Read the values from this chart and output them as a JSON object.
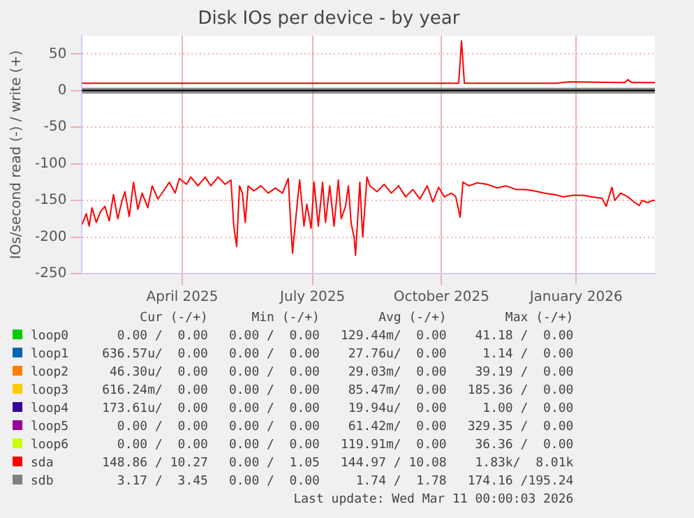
{
  "chart_data": {
    "type": "line",
    "title": "Disk IOs per device - by year",
    "ylabel": "IOs/second read (-) / write (+)",
    "xlim": [
      "2025-02-04",
      "2026-03-11"
    ],
    "xticks": [
      {
        "value": "2025-04-15",
        "label": "April 2025"
      },
      {
        "value": "2025-07-15",
        "label": "July 2025"
      },
      {
        "value": "2025-10-13",
        "label": "October 2025"
      },
      {
        "value": "2026-01-15",
        "label": "January 2026"
      }
    ],
    "ylim": [
      -250,
      75
    ],
    "yticks": [
      -250,
      -200,
      -150,
      -100,
      -50,
      0,
      50
    ],
    "grid": true,
    "legend": "bottom",
    "ref_lines": [
      {
        "axis": "y",
        "value": 0,
        "color": "#000000"
      }
    ],
    "series": [
      {
        "name": "loop0",
        "color": "#00cc00"
      },
      {
        "name": "loop1",
        "color": "#0066b3"
      },
      {
        "name": "loop2",
        "color": "#ff8000"
      },
      {
        "name": "loop3",
        "color": "#ffcc00"
      },
      {
        "name": "loop4",
        "color": "#330099"
      },
      {
        "name": "loop5",
        "color": "#990099"
      },
      {
        "name": "loop6",
        "color": "#ccff00"
      },
      {
        "name": "sda",
        "color": "#ff0000",
        "x": [
          "2025-02-04",
          "2025-10-25",
          "2025-10-27",
          "2025-10-29",
          "2026-01-01",
          "2026-01-10",
          "2026-02-18",
          "2026-02-20",
          "2026-02-23",
          "2026-03-11"
        ],
        "values": [
          10,
          10,
          68,
          10,
          10,
          12,
          11,
          15,
          11,
          11
        ]
      },
      {
        "color": "#ff0000",
        "x": [
          "2025-02-04",
          "2025-02-07",
          "2025-02-09",
          "2025-02-11",
          "2025-02-14",
          "2025-02-17",
          "2025-02-20",
          "2025-02-23",
          "2025-02-26",
          "2025-03-01",
          "2025-03-04",
          "2025-03-06",
          "2025-03-09",
          "2025-03-12",
          "2025-03-15",
          "2025-03-18",
          "2025-03-22",
          "2025-03-25",
          "2025-03-29",
          "2025-04-02",
          "2025-04-06",
          "2025-04-10",
          "2025-04-13",
          "2025-04-18",
          "2025-04-21",
          "2025-04-26",
          "2025-05-01",
          "2025-05-05",
          "2025-05-10",
          "2025-05-15",
          "2025-05-19",
          "2025-05-21",
          "2025-05-23",
          "2025-05-25",
          "2025-05-27",
          "2025-05-29",
          "2025-05-31",
          "2025-06-04",
          "2025-06-09",
          "2025-06-14",
          "2025-06-19",
          "2025-06-24",
          "2025-06-28",
          "2025-06-30",
          "2025-07-01",
          "2025-07-04",
          "2025-07-06",
          "2025-07-09",
          "2025-07-11",
          "2025-07-14",
          "2025-07-16",
          "2025-07-19",
          "2025-07-22",
          "2025-07-24",
          "2025-07-27",
          "2025-07-30",
          "2025-08-02",
          "2025-08-04",
          "2025-08-07",
          "2025-08-09",
          "2025-08-11",
          "2025-08-13",
          "2025-08-14",
          "2025-08-17",
          "2025-08-19",
          "2025-08-22",
          "2025-08-24",
          "2025-08-29",
          "2025-09-03",
          "2025-09-08",
          "2025-09-13",
          "2025-09-18",
          "2025-09-23",
          "2025-09-28",
          "2025-10-03",
          "2025-10-07",
          "2025-10-11",
          "2025-10-15",
          "2025-10-20",
          "2025-10-23",
          "2025-10-26",
          "2025-10-28",
          "2025-11-01",
          "2025-11-07",
          "2025-11-14",
          "2025-11-21",
          "2025-11-27",
          "2025-12-04",
          "2025-12-11",
          "2025-12-17",
          "2025-12-24",
          "2025-12-31",
          "2026-01-06",
          "2026-01-13",
          "2026-01-20",
          "2026-01-26",
          "2026-02-02",
          "2026-02-05",
          "2026-02-09",
          "2026-02-11",
          "2026-02-15",
          "2026-02-20",
          "2026-02-25",
          "2026-02-28",
          "2026-03-02",
          "2026-03-06",
          "2026-03-09",
          "2026-03-11"
        ],
        "values": [
          -183,
          -168,
          -185,
          -160,
          -180,
          -165,
          -158,
          -178,
          -142,
          -175,
          -150,
          -138,
          -172,
          -125,
          -162,
          -140,
          -160,
          -130,
          -148,
          -137,
          -125,
          -140,
          -120,
          -128,
          -118,
          -130,
          -118,
          -130,
          -118,
          -128,
          -122,
          -185,
          -213,
          -130,
          -140,
          -180,
          -130,
          -137,
          -130,
          -140,
          -133,
          -140,
          -120,
          -190,
          -222,
          -160,
          -122,
          -185,
          -155,
          -188,
          -125,
          -185,
          -125,
          -180,
          -130,
          -185,
          -122,
          -175,
          -158,
          -130,
          -182,
          -200,
          -225,
          -125,
          -200,
          -118,
          -130,
          -138,
          -128,
          -140,
          -130,
          -145,
          -135,
          -148,
          -130,
          -152,
          -132,
          -145,
          -140,
          -145,
          -173,
          -125,
          -130,
          -126,
          -128,
          -133,
          -130,
          -135,
          -135,
          -137,
          -140,
          -142,
          -145,
          -143,
          -143,
          -145,
          -147,
          -158,
          -132,
          -150,
          -140,
          -145,
          -153,
          -157,
          -150,
          -153,
          -150,
          -150
        ]
      },
      {
        "name": "sdb",
        "color": "#808080",
        "x": [
          "2025-02-04",
          "2026-03-11"
        ],
        "values": [
          3,
          3
        ]
      },
      {
        "color": "#808080",
        "x": [
          "2025-02-04",
          "2026-03-11"
        ],
        "values": [
          -3,
          -3
        ]
      }
    ],
    "annotations": [
      "Cur (-/+)",
      "Min (-/+)",
      "Avg (-/+)",
      "Max (-/+)",
      "0.00 /  0.00",
      "0.00 /  0.00",
      "129.44m/  0.00",
      "41.18 /  0.00",
      "636.57u/  0.00",
      "0.00 /  0.00",
      "27.76u/  0.00",
      "1.14 /  0.00",
      "46.30u/  0.00",
      "0.00 /  0.00",
      "29.03m/  0.00",
      "39.19 /  0.00",
      "616.24m/  0.00",
      "0.00 /  0.00",
      "85.47m/  0.00",
      "185.36 /  0.00",
      "173.61u/  0.00",
      "0.00 /  0.00",
      "19.94u/  0.00",
      "1.00 /  0.00",
      "0.00 /  0.00",
      "0.00 /  0.00",
      "61.42m/  0.00",
      "329.35 /  0.00",
      "0.00 /  0.00",
      "0.00 /  0.00",
      "119.91m/  0.00",
      "36.36 /  0.00",
      "148.86 / 10.27",
      "0.00 /  1.05",
      "144.97 / 10.08",
      "1.83k/  8.01k",
      "3.17 /  3.45",
      "0.00 /  0.00",
      "1.74 /  1.78",
      "174.16 /195.24",
      "Last update: Wed Mar 11 00:00:03 2026"
    ]
  }
}
